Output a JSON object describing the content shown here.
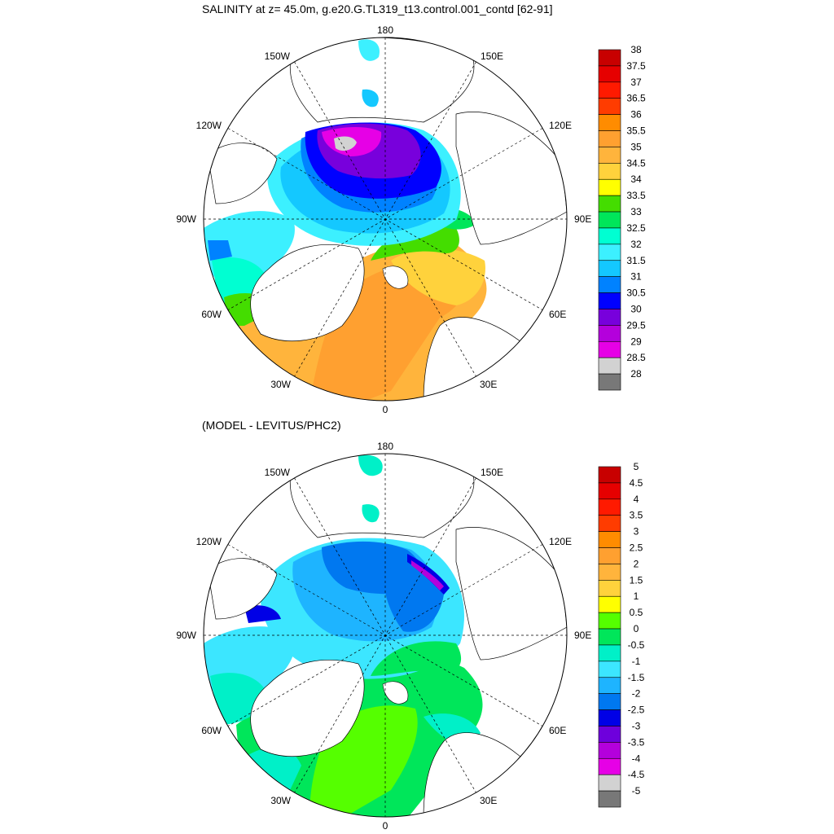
{
  "panels": [
    {
      "title": "SALINITY at z=  45.0m, g.e20.G.TL319_t13.control.001_contd [62-91]",
      "colorbar": {
        "labels": [
          "38",
          "37.5",
          "37",
          "36.5",
          "36",
          "35.5",
          "35",
          "34.5",
          "34",
          "33.5",
          "33",
          "32.5",
          "32",
          "31.5",
          "31",
          "30.5",
          "30",
          "29.5",
          "29",
          "28.5",
          "28"
        ],
        "colors": [
          "#c80000",
          "#e60000",
          "#ff1a00",
          "#ff3c00",
          "#ff8c00",
          "#ffa030",
          "#ffb43c",
          "#ffd23c",
          "#ffff00",
          "#44dd00",
          "#00e65a",
          "#00ffd2",
          "#3cf0ff",
          "#14c8ff",
          "#0082ff",
          "#0000ff",
          "#7800dc",
          "#b400dc",
          "#e600e6",
          "#d2d2d2",
          "#787878"
        ]
      },
      "longitude_labels": {
        "top": "180",
        "bottom": "0",
        "left": "90W",
        "right": "90E",
        "ul1": "150W",
        "ul2": "120W",
        "ur1": "150E",
        "ur2": "120E",
        "ll1": "60W",
        "ll2": "30W",
        "lr1": "60E",
        "lr2": "30E"
      }
    },
    {
      "title": "(MODEL - LEVITUS/PHC2)",
      "colorbar": {
        "labels": [
          "5",
          "4.5",
          "4",
          "3.5",
          "3",
          "2.5",
          "2",
          "1.5",
          "1",
          "0.5",
          "0",
          "-0.5",
          "-1",
          "-1.5",
          "-2",
          "-2.5",
          "-3",
          "-3.5",
          "-4",
          "-4.5",
          "-5"
        ],
        "colors": [
          "#c80000",
          "#e60000",
          "#ff1a00",
          "#ff3c00",
          "#ff8c00",
          "#ffa030",
          "#ffb43c",
          "#ffd23c",
          "#ffff00",
          "#55ff00",
          "#00e65a",
          "#00f0c8",
          "#3ce6ff",
          "#1eb4ff",
          "#0078f0",
          "#0000e6",
          "#6e00dc",
          "#b400dc",
          "#e600e6",
          "#d2d2d2",
          "#787878"
        ]
      },
      "longitude_labels": {
        "top": "180",
        "bottom": "0",
        "left": "90W",
        "right": "90E",
        "ul1": "150W",
        "ul2": "120W",
        "ur1": "150E",
        "ur2": "120E",
        "ll1": "60W",
        "ll2": "30W",
        "lr1": "60E",
        "lr2": "30E"
      }
    }
  ]
}
